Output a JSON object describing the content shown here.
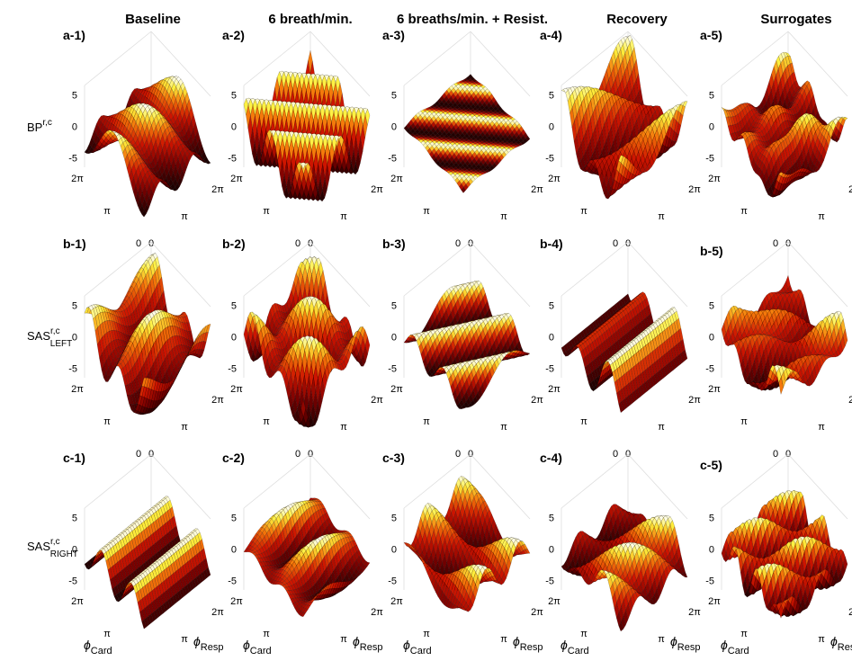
{
  "columns": [
    "Baseline",
    "6 breath/min.",
    "6 breaths/min. + Resist.",
    "Recovery",
    "Surrogates"
  ],
  "rows": [
    {
      "name": "BP",
      "sup": "r,c",
      "panels": [
        "a-1)",
        "a-2)",
        "a-3)",
        "a-4)",
        "a-5)"
      ]
    },
    {
      "name": "SAS",
      "sup": "r,c",
      "sub": "LEFT",
      "panels": [
        "b-1)",
        "b-2)",
        "b-3)",
        "b-4)",
        "b-5)"
      ]
    },
    {
      "name": "SAS",
      "sup": "r,c",
      "sub": "RIGHT",
      "panels": [
        "c-1)",
        "c-2)",
        "c-3)",
        "c-4)",
        "c-5)"
      ]
    }
  ],
  "z_ticks": [
    "5",
    "0",
    "-5"
  ],
  "phase_ticks": [
    "0",
    "π",
    "2π"
  ],
  "x_label": {
    "symbol": "ϕ",
    "sub": "Card"
  },
  "y_label": {
    "symbol": "ϕ",
    "sub": "Resp"
  }
}
